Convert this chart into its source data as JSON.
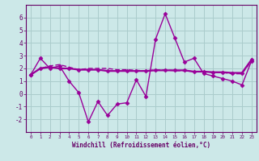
{
  "xlabel": "Windchill (Refroidissement éolien,°C)",
  "hours": [
    0,
    1,
    2,
    3,
    4,
    5,
    6,
    7,
    8,
    9,
    10,
    11,
    12,
    13,
    14,
    15,
    16,
    17,
    18,
    19,
    20,
    21,
    22,
    23
  ],
  "line1": [
    1.5,
    2.8,
    2.0,
    2.2,
    1.0,
    0.1,
    -2.2,
    -0.6,
    -1.7,
    -0.8,
    -0.7,
    1.1,
    -0.2,
    4.3,
    6.3,
    4.4,
    2.5,
    2.8,
    1.6,
    1.4,
    1.2,
    1.0,
    0.7,
    2.6
  ],
  "line2": [
    1.5,
    2.0,
    2.1,
    2.0,
    2.0,
    1.9,
    1.9,
    1.9,
    1.8,
    1.8,
    1.8,
    1.8,
    1.8,
    1.85,
    1.85,
    1.85,
    1.85,
    1.75,
    1.75,
    1.7,
    1.7,
    1.65,
    1.65,
    2.7
  ],
  "line3": [
    1.5,
    2.0,
    2.2,
    2.3,
    2.1,
    1.9,
    2.0,
    2.0,
    2.0,
    1.9,
    1.9,
    1.85,
    1.82,
    1.88,
    1.88,
    1.82,
    1.82,
    1.75,
    1.75,
    1.68,
    1.68,
    1.58,
    1.58,
    2.6
  ],
  "line_color": "#990099",
  "bg_color": "#cce8e8",
  "grid_color": "#aacccc",
  "ylim": [
    -3,
    7
  ],
  "yticks": [
    -2,
    -1,
    0,
    1,
    2,
    3,
    4,
    5,
    6
  ],
  "marker": "D",
  "marker_size": 2.5,
  "line_width": 1.0
}
